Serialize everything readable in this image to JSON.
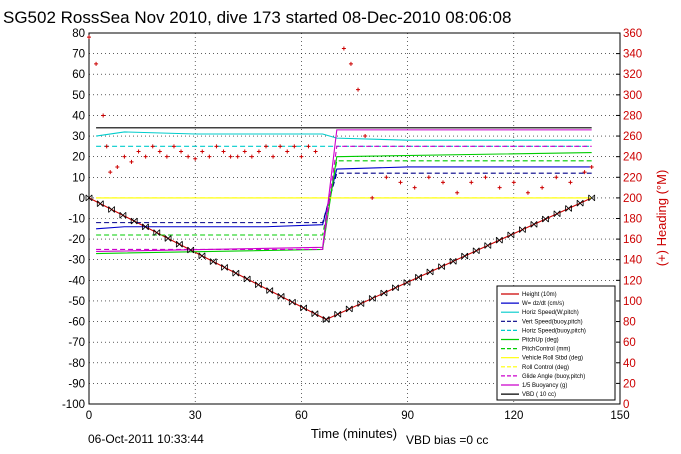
{
  "chart_data": {
    "type": "line",
    "title": "SG502 RossSea Nov 2010, dive 173 started 08-Dec-2010 08:06:08",
    "xlabel": "Time (minutes)",
    "ylabel_right": "(+) Heading (°M)",
    "xlim": [
      0,
      150
    ],
    "ylim_left": [
      -100,
      80
    ],
    "ylim_right": [
      0,
      360
    ],
    "x_ticks": [
      "0",
      "30",
      "60",
      "90",
      "120",
      "150"
    ],
    "y_left_ticks": [
      "80",
      "70",
      "60",
      "50",
      "40",
      "30",
      "20",
      "10",
      "0",
      "-10",
      "-20",
      "-30",
      "-40",
      "-50",
      "-60",
      "-70",
      "-80",
      "-90",
      "-100"
    ],
    "y_right_ticks": [
      "360",
      "340",
      "320",
      "300",
      "280",
      "260",
      "240",
      "220",
      "200",
      "180",
      "160",
      "140",
      "120",
      "100",
      "80",
      "60",
      "40",
      "20",
      "0"
    ],
    "grid": true,
    "legend_position": "bottom-right",
    "footer_left": "06-Oct-2011 10:33:44",
    "footer_right": "VBD bias =0 cc",
    "series": [
      {
        "name": "Height (10m)",
        "color": "#cc0000",
        "style": "solid",
        "x": [
          0,
          67,
          142
        ],
        "y": [
          0,
          -59,
          0
        ]
      },
      {
        "name": "W= dz/dt (cm/s)",
        "color": "#0000cc",
        "style": "solid",
        "x": [
          2,
          10,
          30,
          50,
          66,
          70,
          90,
          110,
          130,
          142
        ],
        "y": [
          -15,
          -14,
          -14,
          -14,
          -13,
          14,
          15,
          15,
          15,
          15
        ]
      },
      {
        "name": "Horiz Speed(W,pitch)",
        "color": "#00cccc",
        "style": "solid",
        "x": [
          2,
          10,
          30,
          50,
          66,
          70,
          90,
          110,
          130,
          142
        ],
        "y": [
          30,
          32,
          31,
          31,
          31,
          29,
          28,
          28,
          28,
          28
        ]
      },
      {
        "name": "Vert Speed(buoy,pitch)",
        "color": "#000088",
        "style": "dashed",
        "x": [
          2,
          66,
          70,
          142
        ],
        "y": [
          -12,
          -12,
          12,
          12
        ]
      },
      {
        "name": "Horiz Speed(buoy,pitch)",
        "color": "#00cccc",
        "style": "dashed",
        "x": [
          2,
          66,
          70,
          142
        ],
        "y": [
          25,
          25,
          25,
          25
        ]
      },
      {
        "name": "PitchUp (deg)",
        "color": "#00cc00",
        "style": "solid",
        "x": [
          2,
          66,
          70,
          142
        ],
        "y": [
          -27,
          -25,
          20,
          22
        ]
      },
      {
        "name": "PitchControl (mm)",
        "color": "#00cc00",
        "style": "dashed",
        "x": [
          2,
          66,
          70,
          142
        ],
        "y": [
          -18,
          -18,
          18,
          18
        ]
      },
      {
        "name": "Vehicle Roll Stbd (deg)",
        "color": "#ffff00",
        "style": "solid",
        "x": [
          2,
          66,
          70,
          142
        ],
        "y": [
          0,
          0,
          0,
          0
        ]
      },
      {
        "name": "Roll Control (deg)",
        "color": "#ffff00",
        "style": "dashed",
        "x": [
          2,
          66,
          70,
          142
        ],
        "y": [
          0,
          0,
          0,
          0
        ]
      },
      {
        "name": "Glide Angle (buoy,pitch)",
        "color": "#cc00cc",
        "style": "dashed",
        "x": [
          2,
          66,
          70,
          142
        ],
        "y": [
          -25,
          -25,
          25,
          25
        ]
      },
      {
        "name": "1/5 Buoyancy (g)",
        "color": "#cc00cc",
        "style": "solid",
        "x": [
          2,
          66,
          70,
          142
        ],
        "y": [
          -26,
          -24,
          33,
          33
        ]
      },
      {
        "name": "VBD ( 10 cc)",
        "color": "#000000",
        "style": "solid",
        "x": [
          2,
          66,
          70,
          142
        ],
        "y": [
          34,
          34,
          34,
          34
        ]
      }
    ],
    "heading_samples": {
      "name": "Heading (°M)",
      "axis": "right",
      "color": "#cc0000",
      "x": [
        0,
        2,
        4,
        5,
        6,
        8,
        10,
        12,
        14,
        16,
        18,
        20,
        22,
        24,
        26,
        28,
        30,
        32,
        34,
        36,
        38,
        40,
        42,
        44,
        46,
        48,
        50,
        52,
        54,
        56,
        58,
        60,
        62,
        64,
        72,
        74,
        76,
        78,
        80,
        84,
        88,
        92,
        96,
        100,
        104,
        108,
        112,
        116,
        120,
        124,
        128,
        132,
        136,
        140,
        142
      ],
      "y": [
        356,
        330,
        280,
        250,
        225,
        230,
        240,
        235,
        245,
        240,
        250,
        245,
        240,
        250,
        245,
        240,
        238,
        245,
        240,
        250,
        245,
        240,
        240,
        245,
        240,
        245,
        250,
        240,
        250,
        245,
        250,
        240,
        250,
        245,
        345,
        330,
        305,
        260,
        200,
        220,
        215,
        210,
        220,
        215,
        205,
        215,
        220,
        210,
        215,
        205,
        210,
        220,
        215,
        225,
        230
      ]
    }
  }
}
